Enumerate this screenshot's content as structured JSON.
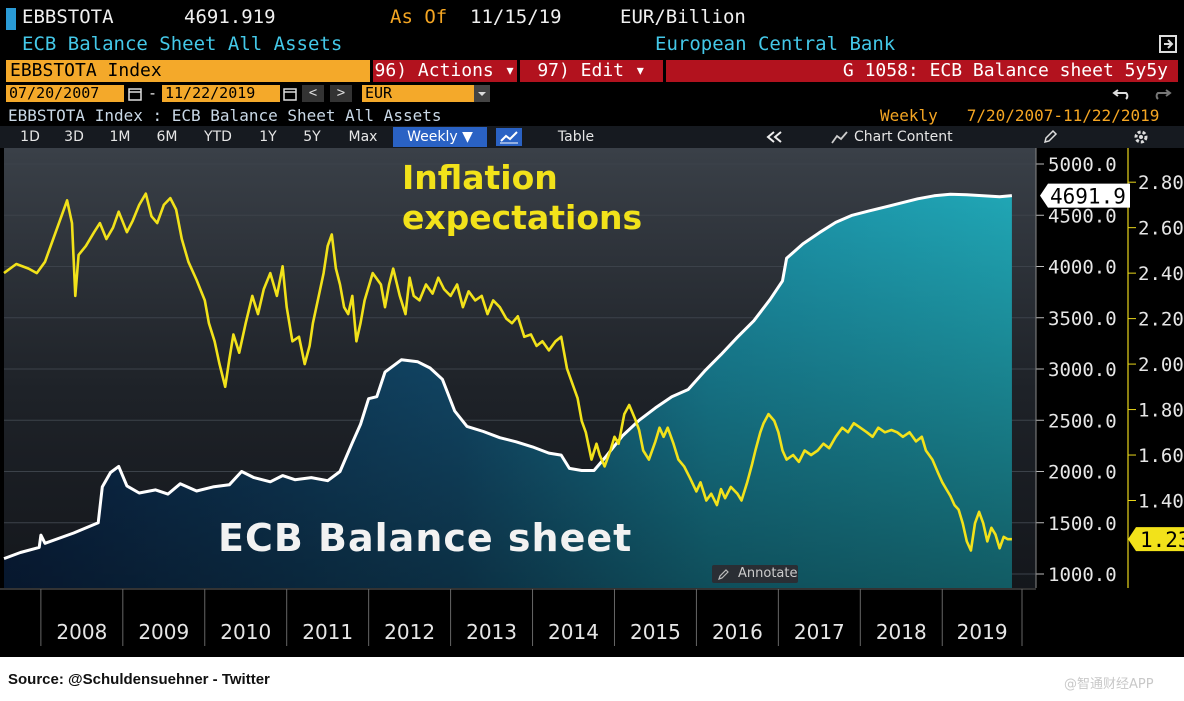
{
  "header": {
    "ticker": "EBBSTOTA",
    "last_value": "4691.919",
    "as_of_label": "As Of",
    "as_of_date": "11/15/19",
    "units": "EUR/Billion",
    "series_title": "ECB Balance Sheet All Assets",
    "source_org": "European Central Bank"
  },
  "command_bar": {
    "index_field": "EBBSTOTA Index",
    "actions_label": "96) Actions ▾",
    "edit_label": "97) Edit ▾",
    "page_title": "G 1058: ECB Balance sheet 5y5y"
  },
  "range_bar": {
    "start_date": "07/20/2007",
    "separator": "-",
    "end_date": "11/22/2019",
    "prev": "<",
    "next": ">",
    "currency": "EUR"
  },
  "subtitle": {
    "left": "EBBSTOTA Index : ECB Balance Sheet All Assets",
    "right": "Weekly   7/20/2007-11/22/2019"
  },
  "toolbar": {
    "periods": [
      "1D",
      "3D",
      "1M",
      "6M",
      "YTD",
      "1Y",
      "5Y",
      "Max"
    ],
    "frequency": "Weekly ▼",
    "table_label": "Table",
    "chart_content_label": "Chart Content",
    "annotate_label": "Annotate"
  },
  "chart_data": {
    "type": "area",
    "x_range": [
      2007.55,
      2019.9
    ],
    "x_ticks": [
      "2008",
      "2009",
      "2010",
      "2011",
      "2012",
      "2013",
      "2014",
      "2015",
      "2016",
      "2017",
      "2018",
      "2019"
    ],
    "annotations": [
      "Inflation expectations",
      "ECB Balance sheet"
    ],
    "grid": true,
    "series": [
      {
        "type": "area",
        "axis": "left",
        "color": "#ffffff",
        "fill": [
          "#0d3157",
          "#1a9fb0"
        ],
        "ylim": [
          1000,
          5000
        ],
        "y_ticks": [
          "5000.0",
          "4500.0",
          "4000.0",
          "3500.0",
          "3000.0",
          "2500.0",
          "2000.0",
          "1500.0",
          "1000.0"
        ],
        "last_label": "4691.9",
        "points": [
          [
            2007.55,
            1150
          ],
          [
            2007.75,
            1210
          ],
          [
            2007.98,
            1260
          ],
          [
            2008.0,
            1380
          ],
          [
            2008.05,
            1300
          ],
          [
            2008.4,
            1400
          ],
          [
            2008.7,
            1500
          ],
          [
            2008.75,
            1850
          ],
          [
            2008.85,
            1990
          ],
          [
            2008.95,
            2050
          ],
          [
            2009.05,
            1860
          ],
          [
            2009.2,
            1790
          ],
          [
            2009.4,
            1820
          ],
          [
            2009.55,
            1780
          ],
          [
            2009.7,
            1880
          ],
          [
            2009.9,
            1810
          ],
          [
            2010.1,
            1850
          ],
          [
            2010.3,
            1870
          ],
          [
            2010.45,
            2000
          ],
          [
            2010.6,
            1940
          ],
          [
            2010.8,
            1900
          ],
          [
            2010.95,
            1960
          ],
          [
            2011.1,
            1920
          ],
          [
            2011.3,
            1940
          ],
          [
            2011.5,
            1910
          ],
          [
            2011.65,
            2000
          ],
          [
            2011.8,
            2280
          ],
          [
            2011.9,
            2460
          ],
          [
            2012.0,
            2710
          ],
          [
            2012.1,
            2730
          ],
          [
            2012.2,
            2970
          ],
          [
            2012.4,
            3090
          ],
          [
            2012.6,
            3070
          ],
          [
            2012.75,
            3010
          ],
          [
            2012.9,
            2900
          ],
          [
            2013.05,
            2590
          ],
          [
            2013.2,
            2440
          ],
          [
            2013.4,
            2390
          ],
          [
            2013.6,
            2330
          ],
          [
            2013.8,
            2290
          ],
          [
            2014.0,
            2240
          ],
          [
            2014.2,
            2180
          ],
          [
            2014.35,
            2160
          ],
          [
            2014.45,
            2030
          ],
          [
            2014.6,
            2010
          ],
          [
            2014.75,
            2010
          ],
          [
            2014.9,
            2150
          ],
          [
            2015.1,
            2350
          ],
          [
            2015.3,
            2500
          ],
          [
            2015.5,
            2620
          ],
          [
            2015.7,
            2730
          ],
          [
            2015.9,
            2800
          ],
          [
            2016.1,
            2980
          ],
          [
            2016.3,
            3140
          ],
          [
            2016.5,
            3310
          ],
          [
            2016.7,
            3470
          ],
          [
            2016.9,
            3680
          ],
          [
            2017.05,
            3860
          ],
          [
            2017.1,
            4080
          ],
          [
            2017.3,
            4220
          ],
          [
            2017.5,
            4330
          ],
          [
            2017.7,
            4430
          ],
          [
            2017.9,
            4500
          ],
          [
            2018.1,
            4540
          ],
          [
            2018.3,
            4580
          ],
          [
            2018.5,
            4620
          ],
          [
            2018.7,
            4660
          ],
          [
            2018.9,
            4690
          ],
          [
            2019.1,
            4705
          ],
          [
            2019.3,
            4700
          ],
          [
            2019.5,
            4690
          ],
          [
            2019.7,
            4680
          ],
          [
            2019.85,
            4692
          ]
        ]
      },
      {
        "type": "line",
        "axis": "right",
        "color": "#f2e21a",
        "ylim": [
          0.98,
          2.88
        ],
        "y_ticks": [
          "2.80",
          "2.60",
          "2.40",
          "2.20",
          "2.00",
          "1.80",
          "1.60",
          "1.40",
          "1.23"
        ],
        "last_label": "1.23",
        "points": [
          [
            2007.55,
            2.4
          ],
          [
            2007.7,
            2.44
          ],
          [
            2007.85,
            2.42
          ],
          [
            2007.95,
            2.4
          ],
          [
            2008.05,
            2.45
          ],
          [
            2008.15,
            2.55
          ],
          [
            2008.25,
            2.65
          ],
          [
            2008.32,
            2.72
          ],
          [
            2008.38,
            2.62
          ],
          [
            2008.42,
            2.3
          ],
          [
            2008.46,
            2.48
          ],
          [
            2008.55,
            2.52
          ],
          [
            2008.65,
            2.58
          ],
          [
            2008.72,
            2.62
          ],
          [
            2008.8,
            2.55
          ],
          [
            2008.88,
            2.6
          ],
          [
            2008.95,
            2.67
          ],
          [
            2009.05,
            2.58
          ],
          [
            2009.12,
            2.63
          ],
          [
            2009.2,
            2.7
          ],
          [
            2009.28,
            2.75
          ],
          [
            2009.35,
            2.65
          ],
          [
            2009.42,
            2.62
          ],
          [
            2009.5,
            2.7
          ],
          [
            2009.58,
            2.73
          ],
          [
            2009.65,
            2.68
          ],
          [
            2009.72,
            2.55
          ],
          [
            2009.8,
            2.45
          ],
          [
            2009.9,
            2.37
          ],
          [
            2010.0,
            2.28
          ],
          [
            2010.05,
            2.18
          ],
          [
            2010.12,
            2.1
          ],
          [
            2010.18,
            2.0
          ],
          [
            2010.25,
            1.9
          ],
          [
            2010.3,
            2.02
          ],
          [
            2010.35,
            2.13
          ],
          [
            2010.42,
            2.05
          ],
          [
            2010.5,
            2.18
          ],
          [
            2010.58,
            2.3
          ],
          [
            2010.65,
            2.22
          ],
          [
            2010.72,
            2.33
          ],
          [
            2010.8,
            2.4
          ],
          [
            2010.88,
            2.3
          ],
          [
            2010.95,
            2.43
          ],
          [
            2011.0,
            2.25
          ],
          [
            2011.07,
            2.1
          ],
          [
            2011.15,
            2.12
          ],
          [
            2011.22,
            2.0
          ],
          [
            2011.28,
            2.08
          ],
          [
            2011.32,
            2.18
          ],
          [
            2011.38,
            2.28
          ],
          [
            2011.45,
            2.4
          ],
          [
            2011.5,
            2.52
          ],
          [
            2011.55,
            2.57
          ],
          [
            2011.6,
            2.42
          ],
          [
            2011.65,
            2.35
          ],
          [
            2011.7,
            2.25
          ],
          [
            2011.75,
            2.22
          ],
          [
            2011.8,
            2.3
          ],
          [
            2011.85,
            2.1
          ],
          [
            2011.9,
            2.18
          ],
          [
            2011.95,
            2.28
          ],
          [
            2012.05,
            2.4
          ],
          [
            2012.15,
            2.35
          ],
          [
            2012.2,
            2.25
          ],
          [
            2012.25,
            2.35
          ],
          [
            2012.3,
            2.42
          ],
          [
            2012.38,
            2.3
          ],
          [
            2012.45,
            2.22
          ],
          [
            2012.5,
            2.38
          ],
          [
            2012.55,
            2.3
          ],
          [
            2012.62,
            2.28
          ],
          [
            2012.7,
            2.35
          ],
          [
            2012.78,
            2.31
          ],
          [
            2012.85,
            2.38
          ],
          [
            2012.92,
            2.33
          ],
          [
            2013.0,
            2.3
          ],
          [
            2013.08,
            2.35
          ],
          [
            2013.15,
            2.25
          ],
          [
            2013.22,
            2.32
          ],
          [
            2013.3,
            2.28
          ],
          [
            2013.38,
            2.3
          ],
          [
            2013.45,
            2.22
          ],
          [
            2013.52,
            2.28
          ],
          [
            2013.6,
            2.25
          ],
          [
            2013.68,
            2.2
          ],
          [
            2013.75,
            2.18
          ],
          [
            2013.82,
            2.21
          ],
          [
            2013.9,
            2.12
          ],
          [
            2013.98,
            2.13
          ],
          [
            2014.05,
            2.08
          ],
          [
            2014.12,
            2.1
          ],
          [
            2014.2,
            2.06
          ],
          [
            2014.28,
            2.1
          ],
          [
            2014.35,
            2.12
          ],
          [
            2014.42,
            1.98
          ],
          [
            2014.48,
            1.92
          ],
          [
            2014.55,
            1.85
          ],
          [
            2014.6,
            1.75
          ],
          [
            2014.65,
            1.7
          ],
          [
            2014.72,
            1.58
          ],
          [
            2014.78,
            1.65
          ],
          [
            2014.82,
            1.6
          ],
          [
            2014.88,
            1.55
          ],
          [
            2014.95,
            1.62
          ],
          [
            2015.0,
            1.68
          ],
          [
            2015.05,
            1.65
          ],
          [
            2015.12,
            1.78
          ],
          [
            2015.18,
            1.82
          ],
          [
            2015.25,
            1.76
          ],
          [
            2015.3,
            1.71
          ],
          [
            2015.35,
            1.62
          ],
          [
            2015.42,
            1.58
          ],
          [
            2015.5,
            1.66
          ],
          [
            2015.55,
            1.72
          ],
          [
            2015.6,
            1.68
          ],
          [
            2015.65,
            1.72
          ],
          [
            2015.72,
            1.65
          ],
          [
            2015.78,
            1.58
          ],
          [
            2015.85,
            1.55
          ],
          [
            2015.92,
            1.5
          ],
          [
            2016.0,
            1.44
          ],
          [
            2016.05,
            1.48
          ],
          [
            2016.12,
            1.4
          ],
          [
            2016.18,
            1.43
          ],
          [
            2016.25,
            1.38
          ],
          [
            2016.3,
            1.45
          ],
          [
            2016.35,
            1.41
          ],
          [
            2016.42,
            1.46
          ],
          [
            2016.5,
            1.43
          ],
          [
            2016.55,
            1.4
          ],
          [
            2016.62,
            1.48
          ],
          [
            2016.68,
            1.56
          ],
          [
            2016.72,
            1.62
          ],
          [
            2016.78,
            1.7
          ],
          [
            2016.82,
            1.74
          ],
          [
            2016.88,
            1.78
          ],
          [
            2016.95,
            1.75
          ],
          [
            2017.0,
            1.7
          ],
          [
            2017.05,
            1.62
          ],
          [
            2017.1,
            1.58
          ],
          [
            2017.18,
            1.6
          ],
          [
            2017.25,
            1.57
          ],
          [
            2017.32,
            1.62
          ],
          [
            2017.4,
            1.6
          ],
          [
            2017.48,
            1.62
          ],
          [
            2017.55,
            1.65
          ],
          [
            2017.62,
            1.63
          ],
          [
            2017.7,
            1.68
          ],
          [
            2017.78,
            1.72
          ],
          [
            2017.85,
            1.7
          ],
          [
            2017.92,
            1.74
          ],
          [
            2018.0,
            1.72
          ],
          [
            2018.08,
            1.7
          ],
          [
            2018.15,
            1.68
          ],
          [
            2018.22,
            1.72
          ],
          [
            2018.3,
            1.7
          ],
          [
            2018.38,
            1.71
          ],
          [
            2018.45,
            1.7
          ],
          [
            2018.52,
            1.68
          ],
          [
            2018.6,
            1.7
          ],
          [
            2018.68,
            1.66
          ],
          [
            2018.75,
            1.68
          ],
          [
            2018.8,
            1.62
          ],
          [
            2018.88,
            1.58
          ],
          [
            2018.95,
            1.52
          ],
          [
            2019.0,
            1.48
          ],
          [
            2019.05,
            1.45
          ],
          [
            2019.1,
            1.42
          ],
          [
            2019.15,
            1.38
          ],
          [
            2019.2,
            1.36
          ],
          [
            2019.25,
            1.3
          ],
          [
            2019.3,
            1.22
          ],
          [
            2019.35,
            1.18
          ],
          [
            2019.4,
            1.3
          ],
          [
            2019.45,
            1.35
          ],
          [
            2019.5,
            1.3
          ],
          [
            2019.55,
            1.22
          ],
          [
            2019.6,
            1.28
          ],
          [
            2019.65,
            1.25
          ],
          [
            2019.7,
            1.19
          ],
          [
            2019.75,
            1.24
          ],
          [
            2019.8,
            1.23
          ],
          [
            2019.85,
            1.23
          ]
        ]
      }
    ]
  },
  "footer": {
    "source": "Source: @Schuldensuehner - Twitter",
    "watermark": "@智通财经APP"
  }
}
